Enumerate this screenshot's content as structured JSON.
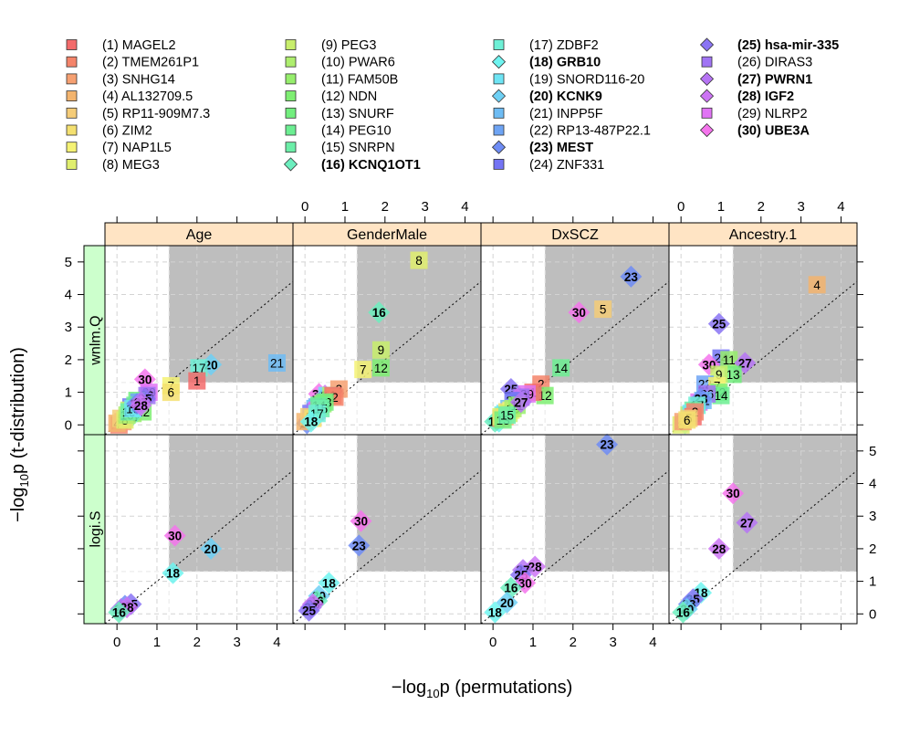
{
  "chart_data": {
    "type": "scatter",
    "xlabel": "−log₁₀p  (permutations)",
    "ylabel": "−log₁₀p  (t-distribution)",
    "xlabel_parts": {
      "pre": "−log",
      "sub": "10",
      "post": "p  (permutations)"
    },
    "ylabel_parts": {
      "pre": "−log",
      "sub": "10",
      "post": "p  (t-distribution)"
    },
    "xlim": [
      -0.3,
      4.4
    ],
    "ylim": [
      -0.3,
      5.5
    ],
    "x_ticks": [
      0,
      1,
      2,
      3,
      4
    ],
    "y_ticks": [
      0,
      1,
      2,
      3,
      4,
      5
    ],
    "grid": true,
    "reference_line": "y = x",
    "significance_threshold": 1.3,
    "legend_position": "top",
    "columns": [
      "Age",
      "GenderMale",
      "DxSCZ",
      "Ancestry.1"
    ],
    "rows": [
      "wnlm.Q",
      "logi.S"
    ],
    "legend": [
      {
        "id": 1,
        "label": "(1) MAGEL2",
        "color": "#f36b6b",
        "shape": "square",
        "bold": false
      },
      {
        "id": 2,
        "label": "(2) TMEM261P1",
        "color": "#f4846a",
        "shape": "square",
        "bold": false
      },
      {
        "id": 3,
        "label": "(3) SNHG14",
        "color": "#f6a071",
        "shape": "square",
        "bold": false
      },
      {
        "id": 4,
        "label": "(4) AL132709.5",
        "color": "#f3b46e",
        "shape": "square",
        "bold": false
      },
      {
        "id": 5,
        "label": "(5) RP11-909M7.3",
        "color": "#f5cc78",
        "shape": "square",
        "bold": false
      },
      {
        "id": 6,
        "label": "(6) ZIM2",
        "color": "#f4e070",
        "shape": "square",
        "bold": false
      },
      {
        "id": 7,
        "label": "(7) NAP1L5",
        "color": "#f5f274",
        "shape": "square",
        "bold": false
      },
      {
        "id": 8,
        "label": "(8) MEG3",
        "color": "#e0ee6e",
        "shape": "square",
        "bold": false
      },
      {
        "id": 9,
        "label": "(9) PEG3",
        "color": "#c8ee6c",
        "shape": "square",
        "bold": false
      },
      {
        "id": 10,
        "label": "(10) PWAR6",
        "color": "#aeee6e",
        "shape": "square",
        "bold": false
      },
      {
        "id": 11,
        "label": "(11) FAM50B",
        "color": "#96ee6c",
        "shape": "square",
        "bold": false
      },
      {
        "id": 12,
        "label": "(12) NDN",
        "color": "#7eee72",
        "shape": "square",
        "bold": false
      },
      {
        "id": 13,
        "label": "(13) SNURF",
        "color": "#72ee7e",
        "shape": "square",
        "bold": false
      },
      {
        "id": 14,
        "label": "(14) PEG10",
        "color": "#6cee92",
        "shape": "square",
        "bold": false
      },
      {
        "id": 15,
        "label": "(15) SNRPN",
        "color": "#6ceea8",
        "shape": "square",
        "bold": false
      },
      {
        "id": 16,
        "label": "(16) KCNQ1OT1",
        "color": "#6ceebe",
        "shape": "diamond",
        "bold": true
      },
      {
        "id": 17,
        "label": "(17) ZDBF2",
        "color": "#6ef0d6",
        "shape": "square",
        "bold": false
      },
      {
        "id": 18,
        "label": "(18) GRB10",
        "color": "#6ef4f0",
        "shape": "diamond",
        "bold": true
      },
      {
        "id": 19,
        "label": "(19) SNORD116-20",
        "color": "#6ee4f4",
        "shape": "square",
        "bold": false
      },
      {
        "id": 20,
        "label": "(20) KCNK9",
        "color": "#6ed0f4",
        "shape": "diamond",
        "bold": true
      },
      {
        "id": 21,
        "label": "(21) INPP5F",
        "color": "#6ebcf4",
        "shape": "square",
        "bold": false
      },
      {
        "id": 22,
        "label": "(22) RP13-487P22.1",
        "color": "#6ea4f4",
        "shape": "square",
        "bold": false
      },
      {
        "id": 23,
        "label": "(23) MEST",
        "color": "#6e8cf4",
        "shape": "diamond",
        "bold": true
      },
      {
        "id": 24,
        "label": "(24) ZNF331",
        "color": "#7474f4",
        "shape": "square",
        "bold": false
      },
      {
        "id": 25,
        "label": "(25) hsa-mir-335",
        "color": "#8a74f4",
        "shape": "diamond",
        "bold": true
      },
      {
        "id": 26,
        "label": "(26) DIRAS3",
        "color": "#a074f4",
        "shape": "square",
        "bold": false
      },
      {
        "id": 27,
        "label": "(27) PWRN1",
        "color": "#b674f4",
        "shape": "diamond",
        "bold": true
      },
      {
        "id": 28,
        "label": "(28) IGF2",
        "color": "#cc74f4",
        "shape": "diamond",
        "bold": true
      },
      {
        "id": 29,
        "label": "(29) NLRP2",
        "color": "#e074f4",
        "shape": "square",
        "bold": false
      },
      {
        "id": 30,
        "label": "(30) UBE3A",
        "color": "#f474ec",
        "shape": "diamond",
        "bold": true
      }
    ],
    "panels": [
      {
        "row": "wnlm.Q",
        "col": "Age",
        "points": [
          {
            "id": 21,
            "x": 4.0,
            "y": 1.9
          },
          {
            "id": 20,
            "x": 2.35,
            "y": 1.85
          },
          {
            "id": 17,
            "x": 2.05,
            "y": 1.75
          },
          {
            "id": 1,
            "x": 2.0,
            "y": 1.35
          },
          {
            "id": 7,
            "x": 1.35,
            "y": 1.2
          },
          {
            "id": 6,
            "x": 1.35,
            "y": 1.0
          },
          {
            "id": 30,
            "x": 0.7,
            "y": 1.4
          },
          {
            "id": 29,
            "x": 0.8,
            "y": 1.0
          },
          {
            "id": 26,
            "x": 0.75,
            "y": 0.9
          },
          {
            "id": 13,
            "x": 0.5,
            "y": 0.75
          },
          {
            "id": 22,
            "x": 0.55,
            "y": 0.7
          },
          {
            "id": 12,
            "x": 0.65,
            "y": 0.4
          },
          {
            "id": 24,
            "x": 0.35,
            "y": 0.55
          },
          {
            "id": 11,
            "x": 0.4,
            "y": 0.35
          },
          {
            "id": 9,
            "x": 0.3,
            "y": 0.45
          },
          {
            "id": 16,
            "x": 0.35,
            "y": 0.25
          },
          {
            "id": 2,
            "x": 0.05,
            "y": 0.0
          },
          {
            "id": 3,
            "x": 0.15,
            "y": 0.1
          },
          {
            "id": 4,
            "x": 0.0,
            "y": 0.05
          },
          {
            "id": 5,
            "x": 0.1,
            "y": 0.2
          },
          {
            "id": 8,
            "x": 0.2,
            "y": 0.15
          },
          {
            "id": 10,
            "x": 0.25,
            "y": 0.3
          },
          {
            "id": 14,
            "x": 0.45,
            "y": 0.6
          },
          {
            "id": 15,
            "x": 0.3,
            "y": 0.4
          },
          {
            "id": 18,
            "x": 0.5,
            "y": 0.55
          },
          {
            "id": 19,
            "x": 0.4,
            "y": 0.5
          },
          {
            "id": 23,
            "x": 0.5,
            "y": 0.65
          },
          {
            "id": 25,
            "x": 0.7,
            "y": 0.8
          },
          {
            "id": 27,
            "x": 0.6,
            "y": 0.7
          },
          {
            "id": 28,
            "x": 0.6,
            "y": 0.6
          }
        ]
      },
      {
        "row": "wnlm.Q",
        "col": "GenderMale",
        "points": [
          {
            "id": 8,
            "x": 2.85,
            "y": 5.05
          },
          {
            "id": 16,
            "x": 1.85,
            "y": 3.45
          },
          {
            "id": 9,
            "x": 1.9,
            "y": 2.3
          },
          {
            "id": 12,
            "x": 1.9,
            "y": 1.75
          },
          {
            "id": 7,
            "x": 1.45,
            "y": 1.7
          },
          {
            "id": 3,
            "x": 0.85,
            "y": 1.1
          },
          {
            "id": 30,
            "x": 0.35,
            "y": 0.95
          },
          {
            "id": 28,
            "x": 0.5,
            "y": 0.9
          },
          {
            "id": 19,
            "x": 0.55,
            "y": 0.9
          },
          {
            "id": 10,
            "x": 0.65,
            "y": 0.9
          },
          {
            "id": 1,
            "x": 0.7,
            "y": 0.9
          },
          {
            "id": 2,
            "x": 0.75,
            "y": 0.85
          },
          {
            "id": 11,
            "x": 0.45,
            "y": 0.65
          },
          {
            "id": 13,
            "x": 0.5,
            "y": 0.7
          },
          {
            "id": 22,
            "x": 0.3,
            "y": 0.55
          },
          {
            "id": 21,
            "x": 0.25,
            "y": 0.5
          },
          {
            "id": 24,
            "x": 0.15,
            "y": 0.35
          },
          {
            "id": 23,
            "x": 0.05,
            "y": 0.05
          },
          {
            "id": 27,
            "x": 0.1,
            "y": 0.15
          },
          {
            "id": 25,
            "x": 0.15,
            "y": 0.2
          },
          {
            "id": 20,
            "x": 0.2,
            "y": 0.3
          },
          {
            "id": 26,
            "x": 0.25,
            "y": 0.4
          },
          {
            "id": 29,
            "x": 0.3,
            "y": 0.45
          },
          {
            "id": 4,
            "x": 0.0,
            "y": 0.1
          },
          {
            "id": 5,
            "x": 0.1,
            "y": 0.25
          },
          {
            "id": 6,
            "x": 0.2,
            "y": 0.2
          },
          {
            "id": 14,
            "x": 0.35,
            "y": 0.6
          },
          {
            "id": 15,
            "x": 0.4,
            "y": 0.5
          },
          {
            "id": 17,
            "x": 0.3,
            "y": 0.35
          },
          {
            "id": 18,
            "x": 0.15,
            "y": 0.1
          }
        ]
      },
      {
        "row": "wnlm.Q",
        "col": "DxSCZ",
        "points": [
          {
            "id": 23,
            "x": 3.45,
            "y": 4.55
          },
          {
            "id": 5,
            "x": 2.75,
            "y": 3.55
          },
          {
            "id": 30,
            "x": 2.15,
            "y": 3.45
          },
          {
            "id": 14,
            "x": 1.7,
            "y": 1.75
          },
          {
            "id": 2,
            "x": 1.2,
            "y": 1.25
          },
          {
            "id": 25,
            "x": 0.45,
            "y": 1.1
          },
          {
            "id": 12,
            "x": 1.3,
            "y": 0.9
          },
          {
            "id": 1,
            "x": 1.0,
            "y": 1.0
          },
          {
            "id": 29,
            "x": 0.85,
            "y": 0.95
          },
          {
            "id": 26,
            "x": 0.7,
            "y": 0.85
          },
          {
            "id": 28,
            "x": 0.6,
            "y": 0.8
          },
          {
            "id": 22,
            "x": 0.55,
            "y": 0.7
          },
          {
            "id": 24,
            "x": 0.5,
            "y": 0.75
          },
          {
            "id": 21,
            "x": 0.4,
            "y": 0.5
          },
          {
            "id": 18,
            "x": 0.15,
            "y": 0.1
          },
          {
            "id": 20,
            "x": 0.1,
            "y": 0.15
          },
          {
            "id": 16,
            "x": 0.05,
            "y": 0.1
          },
          {
            "id": 17,
            "x": 0.25,
            "y": 0.3
          },
          {
            "id": 19,
            "x": 0.3,
            "y": 0.35
          },
          {
            "id": 3,
            "x": 0.2,
            "y": 0.2
          },
          {
            "id": 4,
            "x": 0.3,
            "y": 0.25
          },
          {
            "id": 6,
            "x": 0.35,
            "y": 0.4
          },
          {
            "id": 7,
            "x": 0.45,
            "y": 0.45
          },
          {
            "id": 8,
            "x": 0.2,
            "y": 0.25
          },
          {
            "id": 9,
            "x": 0.4,
            "y": 0.35
          },
          {
            "id": 10,
            "x": 0.5,
            "y": 0.5
          },
          {
            "id": 11,
            "x": 0.6,
            "y": 0.6
          },
          {
            "id": 13,
            "x": 0.25,
            "y": 0.15
          },
          {
            "id": 15,
            "x": 0.35,
            "y": 0.3
          },
          {
            "id": 27,
            "x": 0.7,
            "y": 0.7
          }
        ]
      },
      {
        "row": "wnlm.Q",
        "col": "Ancestry.1",
        "points": [
          {
            "id": 4,
            "x": 3.4,
            "y": 4.3
          },
          {
            "id": 25,
            "x": 0.95,
            "y": 3.1
          },
          {
            "id": 24,
            "x": 1.0,
            "y": 2.05
          },
          {
            "id": 11,
            "x": 1.2,
            "y": 2.0
          },
          {
            "id": 27,
            "x": 1.6,
            "y": 1.9
          },
          {
            "id": 30,
            "x": 0.7,
            "y": 1.85
          },
          {
            "id": 13,
            "x": 1.3,
            "y": 1.55
          },
          {
            "id": 9,
            "x": 0.95,
            "y": 1.55
          },
          {
            "id": 22,
            "x": 0.6,
            "y": 1.25
          },
          {
            "id": 7,
            "x": 0.9,
            "y": 1.2
          },
          {
            "id": 12,
            "x": 0.95,
            "y": 1.0
          },
          {
            "id": 14,
            "x": 1.0,
            "y": 0.9
          },
          {
            "id": 26,
            "x": 0.65,
            "y": 0.95
          },
          {
            "id": 28,
            "x": 0.5,
            "y": 0.65
          },
          {
            "id": 29,
            "x": 0.45,
            "y": 0.7
          },
          {
            "id": 21,
            "x": 0.55,
            "y": 0.75
          },
          {
            "id": 23,
            "x": 0.5,
            "y": 0.8
          },
          {
            "id": 17,
            "x": 0.4,
            "y": 0.6
          },
          {
            "id": 15,
            "x": 0.3,
            "y": 0.45
          },
          {
            "id": 10,
            "x": 0.2,
            "y": 0.3
          },
          {
            "id": 16,
            "x": 0.15,
            "y": 0.25
          },
          {
            "id": 19,
            "x": 0.25,
            "y": 0.35
          },
          {
            "id": 20,
            "x": 0.1,
            "y": 0.15
          },
          {
            "id": 18,
            "x": 0.1,
            "y": 0.05
          },
          {
            "id": 8,
            "x": 0.0,
            "y": 0.0
          },
          {
            "id": 1,
            "x": 0.3,
            "y": 0.25
          },
          {
            "id": 2,
            "x": 0.35,
            "y": 0.4
          },
          {
            "id": 3,
            "x": 0.05,
            "y": 0.1
          },
          {
            "id": 5,
            "x": 0.2,
            "y": 0.2
          },
          {
            "id": 6,
            "x": 0.15,
            "y": 0.15
          }
        ]
      },
      {
        "row": "logi.S",
        "col": "Age",
        "points": [
          {
            "id": 30,
            "x": 1.45,
            "y": 2.4
          },
          {
            "id": 20,
            "x": 2.35,
            "y": 2.0
          },
          {
            "id": 18,
            "x": 1.4,
            "y": 1.25
          },
          {
            "id": 25,
            "x": 0.35,
            "y": 0.3
          },
          {
            "id": 23,
            "x": 0.2,
            "y": 0.25
          },
          {
            "id": 27,
            "x": 0.1,
            "y": 0.15
          },
          {
            "id": 28,
            "x": 0.25,
            "y": 0.2
          },
          {
            "id": 16,
            "x": 0.05,
            "y": 0.05
          }
        ]
      },
      {
        "row": "logi.S",
        "col": "GenderMale",
        "points": [
          {
            "id": 30,
            "x": 1.4,
            "y": 2.85
          },
          {
            "id": 23,
            "x": 1.35,
            "y": 2.1
          },
          {
            "id": 18,
            "x": 0.6,
            "y": 0.95
          },
          {
            "id": 20,
            "x": 0.35,
            "y": 0.55
          },
          {
            "id": 16,
            "x": 0.3,
            "y": 0.4
          },
          {
            "id": 28,
            "x": 0.2,
            "y": 0.3
          },
          {
            "id": 27,
            "x": 0.15,
            "y": 0.2
          },
          {
            "id": 25,
            "x": 0.1,
            "y": 0.1
          }
        ]
      },
      {
        "row": "logi.S",
        "col": "DxSCZ",
        "points": [
          {
            "id": 23,
            "x": 2.85,
            "y": 5.2
          },
          {
            "id": 28,
            "x": 1.05,
            "y": 1.45
          },
          {
            "id": 27,
            "x": 0.75,
            "y": 1.35
          },
          {
            "id": 25,
            "x": 0.7,
            "y": 1.2
          },
          {
            "id": 30,
            "x": 0.8,
            "y": 0.95
          },
          {
            "id": 16,
            "x": 0.45,
            "y": 0.8
          },
          {
            "id": 20,
            "x": 0.35,
            "y": 0.35
          },
          {
            "id": 18,
            "x": 0.05,
            "y": 0.05
          }
        ]
      },
      {
        "row": "logi.S",
        "col": "Ancestry.1",
        "points": [
          {
            "id": 30,
            "x": 1.3,
            "y": 3.7
          },
          {
            "id": 27,
            "x": 1.65,
            "y": 2.8
          },
          {
            "id": 28,
            "x": 0.95,
            "y": 2.0
          },
          {
            "id": 18,
            "x": 0.5,
            "y": 0.65
          },
          {
            "id": 25,
            "x": 0.3,
            "y": 0.45
          },
          {
            "id": 23,
            "x": 0.2,
            "y": 0.3
          },
          {
            "id": 20,
            "x": 0.15,
            "y": 0.15
          },
          {
            "id": 16,
            "x": 0.05,
            "y": 0.05
          }
        ]
      }
    ]
  }
}
